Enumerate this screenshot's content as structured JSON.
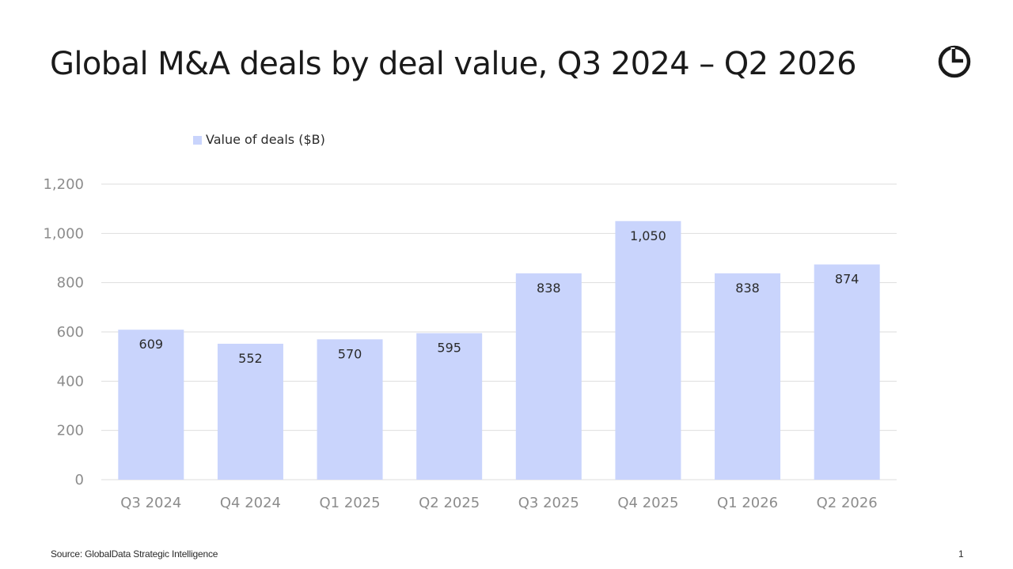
{
  "title": "Global M&A deals by deal value, Q3 2024 – Q2 2026",
  "source": "Source: GlobalData Strategic Intelligence",
  "page_number": "1",
  "logo_icon": "globaldata-logo-icon",
  "colors": {
    "bar": "#c9d4fc",
    "gridline": "#dedede",
    "axis_text": "#8c8c8c",
    "label_text": "#2a2a2a"
  },
  "chart_data": {
    "type": "bar",
    "categories": [
      "Q3 2024",
      "Q4 2024",
      "Q1 2025",
      "Q2 2025",
      "Q3 2025",
      "Q4 2025",
      "Q1 2026",
      "Q2 2026"
    ],
    "series": [
      {
        "name": "Value of deals ($B)",
        "values": [
          609,
          552,
          570,
          595,
          838,
          1050,
          838,
          874
        ],
        "labels": [
          "609",
          "552",
          "570",
          "595",
          "838",
          "1,050",
          "838",
          "874"
        ]
      }
    ],
    "ylim": [
      0,
      1200
    ],
    "yticks": [
      0,
      200,
      400,
      600,
      800,
      1000,
      1200
    ],
    "ytick_labels": [
      "0",
      "200",
      "400",
      "600",
      "800",
      "1,000",
      "1,200"
    ],
    "grid": true,
    "legend_position": "top-left"
  }
}
